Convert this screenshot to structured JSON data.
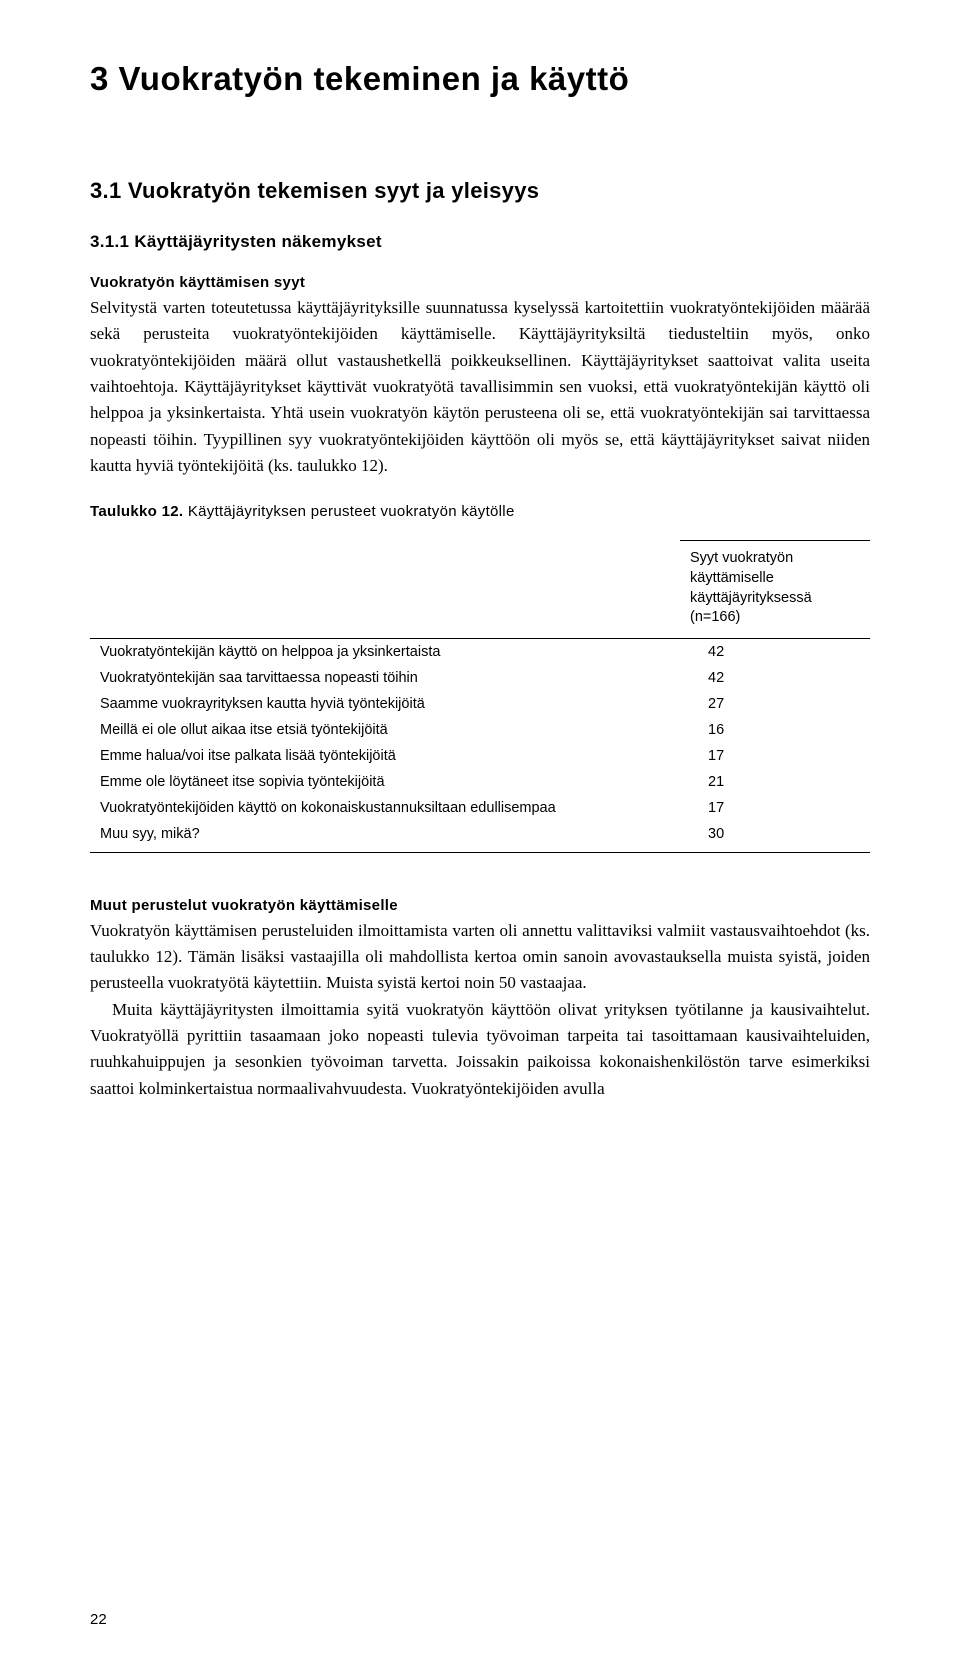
{
  "chapter": {
    "title": "3 Vuokratyön tekeminen ja käyttö"
  },
  "section": {
    "title": "3.1 Vuokratyön tekemisen syyt ja yleisyys"
  },
  "subsection": {
    "title": "3.1.1 Käyttäjäyritysten näkemykset"
  },
  "block1": {
    "heading": "Vuokratyön käyttämisen syyt",
    "para": "Selvitystä varten toteutetussa käyttäjäyrityksille suunnatussa kyselyssä kartoitettiin vuokratyöntekijöiden määrää sekä perusteita vuokratyöntekijöiden käyttämiselle. Käyttäjäyrityksiltä tiedusteltiin myös, onko vuokratyöntekijöiden määrä ollut vastaushetkellä poikkeuksellinen. Käyttäjäyritykset saattoivat valita useita vaihtoehtoja. Käyttäjäyritykset käyttivät vuokratyötä tavallisimmin sen vuoksi, että vuokratyöntekijän käyttö oli helppoa ja yksinkertaista. Yhtä usein vuokratyön käytön perusteena oli se, että vuokratyöntekijän sai tarvittaessa nopeasti töihin. Tyypillinen syy vuokratyöntekijöiden käyttöön oli myös se, että käyttäjäyritykset saivat niiden kautta hyviä työntekijöitä (ks. taulukko 12)."
  },
  "table": {
    "caption_label": "Taulukko 12.",
    "caption_text": " Käyttäjäyrityksen perusteet vuokratyön käytölle",
    "header_right": "Syyt vuokratyön käyttämiselle käyttäjäyrityksessä (n=166)",
    "rows": [
      {
        "label": "Vuokratyöntekijän käyttö on helppoa ja yksinkertaista",
        "value": "42"
      },
      {
        "label": "Vuokratyöntekijän saa tarvittaessa nopeasti töihin",
        "value": "42"
      },
      {
        "label": "Saamme vuokrayrityksen kautta hyviä työntekijöitä",
        "value": "27"
      },
      {
        "label": "Meillä ei ole ollut aikaa itse etsiä työntekijöitä",
        "value": "16"
      },
      {
        "label": "Emme halua/voi itse palkata lisää työntekijöitä",
        "value": "17"
      },
      {
        "label": "Emme ole löytäneet itse sopivia työntekijöitä",
        "value": "21"
      },
      {
        "label": "Vuokratyöntekijöiden käyttö on kokonaiskustannuksiltaan edullisempaa",
        "value": "17"
      },
      {
        "label": "Muu syy, mikä?",
        "value": "30"
      }
    ]
  },
  "block2": {
    "heading": "Muut perustelut vuokratyön käyttämiselle",
    "para1": "Vuokratyön käyttämisen perusteluiden ilmoittamista varten oli annettu valittaviksi valmiit vastausvaihtoehdot (ks. taulukko 12). Tämän lisäksi vastaajilla oli mahdollista kertoa omin sanoin avovastauksella muista syistä, joiden perusteella vuokratyötä käytettiin. Muista syistä kertoi noin 50 vastaajaa.",
    "para2": "Muita käyttäjäyritysten ilmoittamia syitä vuokratyön käyttöön olivat yrityksen työtilanne ja kausivaihtelut. Vuokratyöllä pyrittiin tasaamaan joko nopeasti tulevia työvoiman tarpeita tai tasoittamaan kausivaihteluiden, ruuhkahuippujen ja sesonkien työvoiman tarvetta. Joissakin paikoissa kokonaishenkilöstön tarve esimerkiksi saattoi kolminkertaistua normaalivahvuudesta. Vuokratyöntekijöiden avulla"
  },
  "page_number": "22"
}
